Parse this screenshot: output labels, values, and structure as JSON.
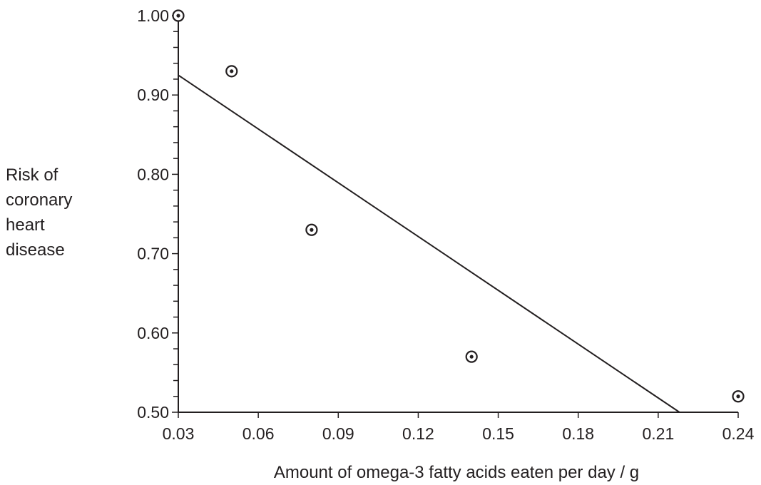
{
  "chart_data": {
    "type": "scatter",
    "xlabel": "Amount of omega-3 fatty acids eaten per day / g",
    "ylabel_lines": [
      "Risk of",
      "coronary",
      "heart",
      "disease"
    ],
    "xlim": [
      0.03,
      0.24
    ],
    "ylim": [
      0.5,
      1.0
    ],
    "x_ticks": [
      0.03,
      0.06,
      0.09,
      0.12,
      0.15,
      0.18,
      0.21,
      0.24
    ],
    "x_tick_labels": [
      "0.03",
      "0.06",
      "0.09",
      "0.12",
      "0.15",
      "0.18",
      "0.21",
      "0.24"
    ],
    "y_ticks": [
      0.5,
      0.6,
      0.7,
      0.8,
      0.9,
      1.0
    ],
    "y_tick_labels": [
      "0.50",
      "0.60",
      "0.70",
      "0.80",
      "0.90",
      "1.00"
    ],
    "y_minor_step": 0.02,
    "grid": false,
    "points": [
      {
        "x": 0.03,
        "y": 1.0
      },
      {
        "x": 0.05,
        "y": 0.93
      },
      {
        "x": 0.08,
        "y": 0.73
      },
      {
        "x": 0.14,
        "y": 0.57
      },
      {
        "x": 0.24,
        "y": 0.52
      }
    ],
    "trend_line": {
      "x": [
        0.03,
        0.218
      ],
      "y": [
        0.925,
        0.5
      ]
    },
    "colors": {
      "ink": "#231f20",
      "background": "#ffffff"
    }
  }
}
